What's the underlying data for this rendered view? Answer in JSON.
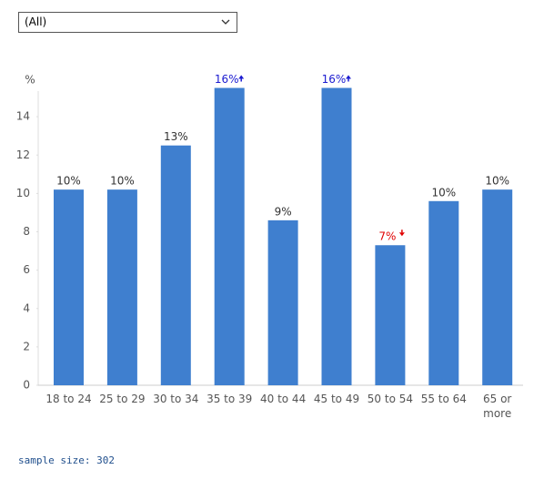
{
  "filter": {
    "selected": "(All)"
  },
  "chart_data": {
    "type": "bar",
    "y_label": "%",
    "categories": [
      "18 to 24",
      "25 to 29",
      "30 to 34",
      "35 to 39",
      "40 to 44",
      "45 to 49",
      "50 to 54",
      "55 to 64",
      "65 or more"
    ],
    "values": [
      10.2,
      10.2,
      12.5,
      15.5,
      8.6,
      15.5,
      7.3,
      9.6,
      10.2
    ],
    "value_labels": [
      "10%",
      "10%",
      "13%",
      "16%",
      "9%",
      "16%",
      "7%",
      "10%",
      "10%"
    ],
    "significance": [
      null,
      null,
      null,
      "up",
      null,
      "up",
      "down",
      null,
      null
    ],
    "color": "#3f7fcf",
    "up_color": "#1a1ad0",
    "down_color": "#e00000",
    "ylim": [
      0,
      16
    ],
    "yticks": [
      0,
      2,
      4,
      6,
      8,
      10,
      12,
      14
    ]
  },
  "footer": "sample size: 302"
}
